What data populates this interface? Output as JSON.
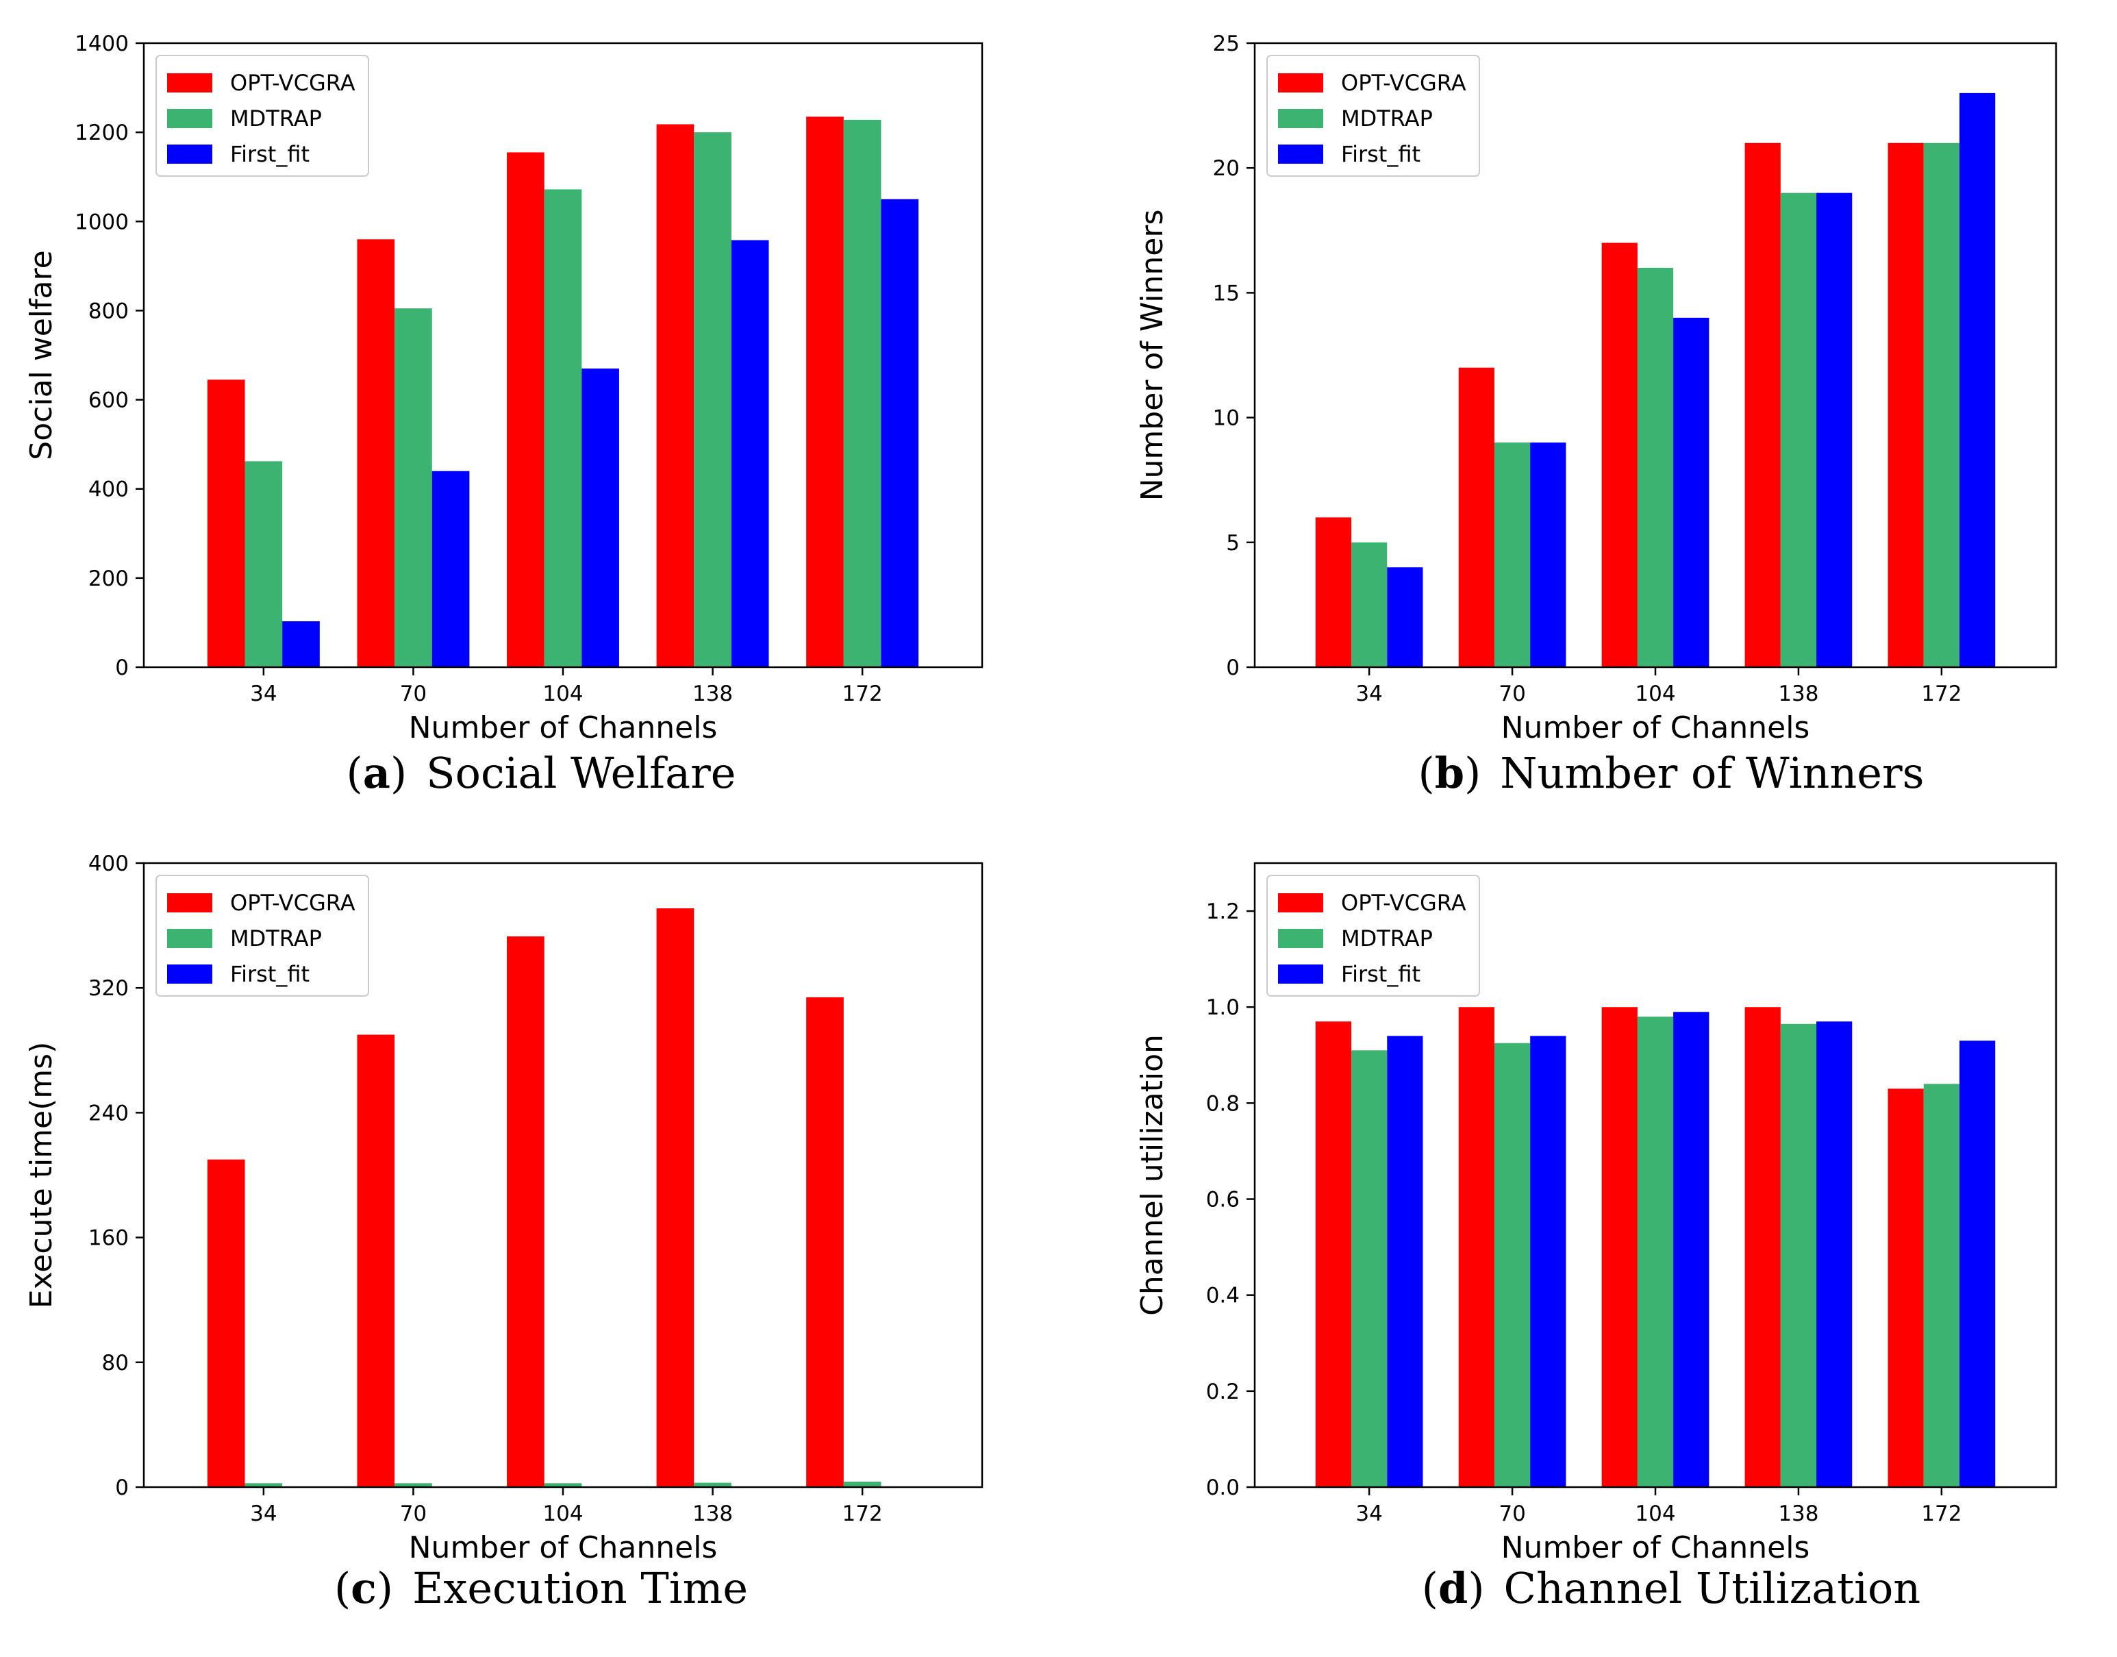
{
  "chart_data": [
    {
      "type": "bar",
      "panel_letter": "a",
      "caption": "Social Welfare",
      "xlabel": "Number of Channels",
      "ylabel": "Social welfare",
      "categories": [
        "34",
        "70",
        "104",
        "138",
        "172"
      ],
      "ylim": [
        0,
        1400
      ],
      "yticks": [
        "0",
        "200",
        "400",
        "600",
        "800",
        "1000",
        "1200",
        "1400"
      ],
      "legend_position": "top-left",
      "grid": false,
      "series": [
        {
          "name": "OPT-VCGRA",
          "color": "#ff0000",
          "values": [
            645,
            960,
            1155,
            1218,
            1235
          ]
        },
        {
          "name": "MDTRAP",
          "color": "#3cb371",
          "values": [
            462,
            805,
            1072,
            1200,
            1228
          ]
        },
        {
          "name": "First_fit",
          "color": "#0000ff",
          "values": [
            103,
            440,
            670,
            958,
            1050
          ]
        }
      ]
    },
    {
      "type": "bar",
      "panel_letter": "b",
      "caption": "Number of Winners",
      "xlabel": "Number of Channels",
      "ylabel": "Number of Winners",
      "categories": [
        "34",
        "70",
        "104",
        "138",
        "172"
      ],
      "ylim": [
        0,
        25
      ],
      "yticks": [
        "0",
        "5",
        "10",
        "15",
        "20",
        "25"
      ],
      "legend_position": "top-left",
      "grid": false,
      "series": [
        {
          "name": "OPT-VCGRA",
          "color": "#ff0000",
          "values": [
            6,
            12,
            17,
            21,
            21
          ]
        },
        {
          "name": "MDTRAP",
          "color": "#3cb371",
          "values": [
            5,
            9,
            16,
            19,
            21
          ]
        },
        {
          "name": "First_fit",
          "color": "#0000ff",
          "values": [
            4,
            9,
            14,
            19,
            23
          ]
        }
      ]
    },
    {
      "type": "bar",
      "panel_letter": "c",
      "caption": "Execution Time",
      "xlabel": "Number of Channels",
      "ylabel": "Execute time(ms)",
      "categories": [
        "34",
        "70",
        "104",
        "138",
        "172"
      ],
      "ylim": [
        0,
        400
      ],
      "yticks": [
        "0",
        "80",
        "160",
        "240",
        "320",
        "400"
      ],
      "legend_position": "top-left",
      "grid": false,
      "series": [
        {
          "name": "OPT-VCGRA",
          "color": "#ff0000",
          "values": [
            210,
            290,
            353,
            371,
            314
          ]
        },
        {
          "name": "MDTRAP",
          "color": "#3cb371",
          "values": [
            2.5,
            2.5,
            2.5,
            2.8,
            3.5
          ]
        },
        {
          "name": "First_fit",
          "color": "#0000ff",
          "values": [
            0.3,
            0.3,
            0.3,
            0.3,
            0.3
          ]
        }
      ]
    },
    {
      "type": "bar",
      "panel_letter": "d",
      "caption": "Channel Utilization",
      "xlabel": "Number of Channels",
      "ylabel": "Channel utilization",
      "categories": [
        "34",
        "70",
        "104",
        "138",
        "172"
      ],
      "ylim": [
        0,
        1.3
      ],
      "yticks": [
        "0.0",
        "0.2",
        "0.4",
        "0.6",
        "0.8",
        "1.0",
        "1.2"
      ],
      "legend_position": "top-left",
      "grid": false,
      "series": [
        {
          "name": "OPT-VCGRA",
          "color": "#ff0000",
          "values": [
            0.97,
            1.0,
            1.0,
            1.0,
            0.83
          ]
        },
        {
          "name": "MDTRAP",
          "color": "#3cb371",
          "values": [
            0.91,
            0.925,
            0.98,
            0.965,
            0.84
          ]
        },
        {
          "name": "First_fit",
          "color": "#0000ff",
          "values": [
            0.94,
            0.94,
            0.99,
            0.97,
            0.93
          ]
        }
      ]
    }
  ]
}
